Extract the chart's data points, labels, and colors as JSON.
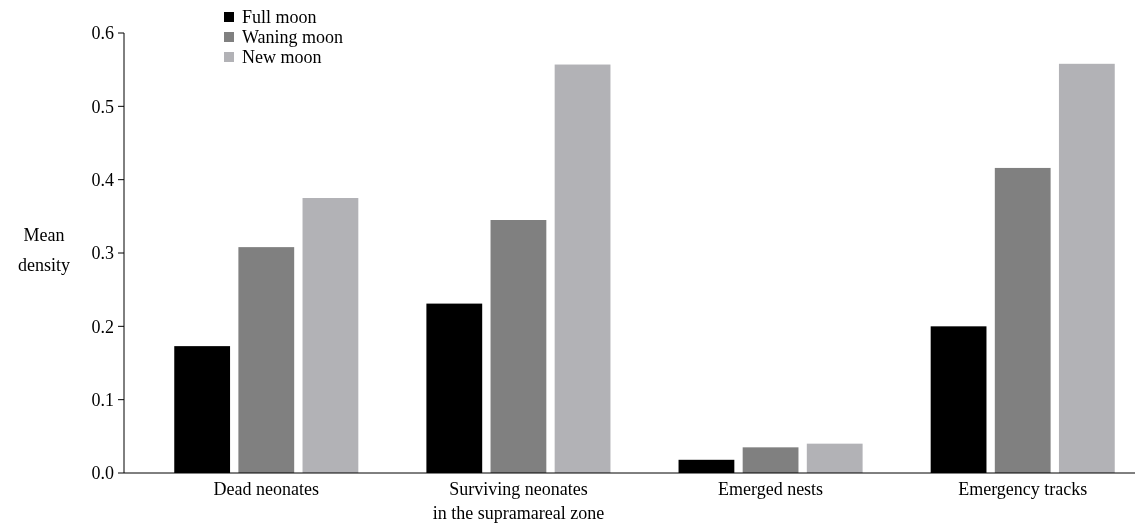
{
  "chart_data": {
    "type": "bar",
    "ylabel": "Mean\ndensity",
    "categories": [
      "Dead neonates",
      "Surviving neonates\nin the supramareal zone",
      "Emerged nests",
      "Emergency tracks"
    ],
    "series": [
      {
        "name": "Full moon",
        "color": "#000000",
        "values": [
          0.173,
          0.231,
          0.018,
          0.2
        ]
      },
      {
        "name": "Waning moon",
        "color": "#808080",
        "values": [
          0.308,
          0.345,
          0.035,
          0.416
        ]
      },
      {
        "name": "New moon",
        "color": "#b2b2b6",
        "values": [
          0.375,
          0.557,
          0.04,
          0.558
        ]
      }
    ],
    "ylim": [
      0,
      0.6
    ],
    "yticks": [
      {
        "value": 0,
        "label": "0.0"
      },
      0.1,
      0.2,
      0.3,
      0.4,
      0.5,
      0.6
    ],
    "legend": "top left"
  }
}
